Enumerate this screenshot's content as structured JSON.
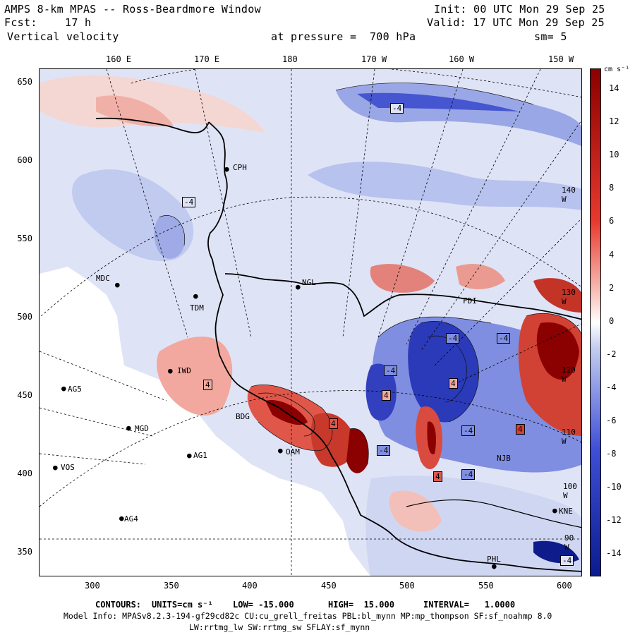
{
  "header": {
    "title": "AMPS 8-km MPAS -- Ross-Beardmore Window",
    "forecast_label": "Fcst:",
    "forecast_value": "17 h",
    "field_name": "Vertical velocity",
    "init": "Init: 00 UTC Mon 29 Sep 25",
    "valid": "Valid: 17 UTC Mon 29 Sep 25",
    "level": "at pressure =  700 hPa",
    "smoothing": "sm= 5"
  },
  "top_axis": [
    "160 E",
    "170 E",
    "180",
    "170 W",
    "160 W",
    "150 W"
  ],
  "left_axis": [
    "650",
    "600",
    "550",
    "500",
    "450",
    "400",
    "350"
  ],
  "bottom_axis": [
    "300",
    "350",
    "400",
    "450",
    "500",
    "550",
    "600"
  ],
  "colorbar": {
    "units": "cm s⁻¹",
    "labels": [
      "14",
      "12",
      "10",
      "8",
      "6",
      "4",
      "2",
      "0",
      "-2",
      "-4",
      "-6",
      "-8",
      "-10",
      "-12",
      "-14"
    ]
  },
  "stations": [
    {
      "name": "CPH"
    },
    {
      "name": "MDC"
    },
    {
      "name": "TDM"
    },
    {
      "name": "NGL"
    },
    {
      "name": "FDI"
    },
    {
      "name": "IWD"
    },
    {
      "name": "AG5"
    },
    {
      "name": "MGD"
    },
    {
      "name": "AG1"
    },
    {
      "name": "VOS"
    },
    {
      "name": "AG4"
    },
    {
      "name": "BDG"
    },
    {
      "name": "OAM"
    },
    {
      "name": "NJB"
    },
    {
      "name": "KNE"
    },
    {
      "name": "PHL"
    }
  ],
  "map_overlay_labels": {
    "lon_140w": "140 W",
    "lon_130w": "130 W",
    "lon_120w": "120 W",
    "lon_110w": "110 W",
    "lon_100w": "100 W",
    "lon_90w": "90 W"
  },
  "contour_labels": [
    "4",
    "-4"
  ],
  "footer": {
    "contours_label": "CONTOURS:",
    "units": "UNITS=cm s⁻¹",
    "low": "LOW= -15.000",
    "high": "HIGH=  15.000",
    "interval": "INTERVAL=   1.0000",
    "model_info": "Model Info: MPASv8.2.3-194-gf29cd82c CU:cu_grell_freitas PBL:bl_mynn MP:mp_thompson SF:sf_noahmp 8.0",
    "model_info2": "LW:rrtmg_lw SW:rrtmg_sw SFLAY:sf_mynn"
  },
  "colors": {
    "strong_red": "#8b0000",
    "red": "#e8392e",
    "light_red": "#f8c9c3",
    "white": "#ffffff",
    "light_blue": "#c4cdef",
    "blue": "#3f4fd6",
    "dark_blue": "#0b1b8f"
  }
}
